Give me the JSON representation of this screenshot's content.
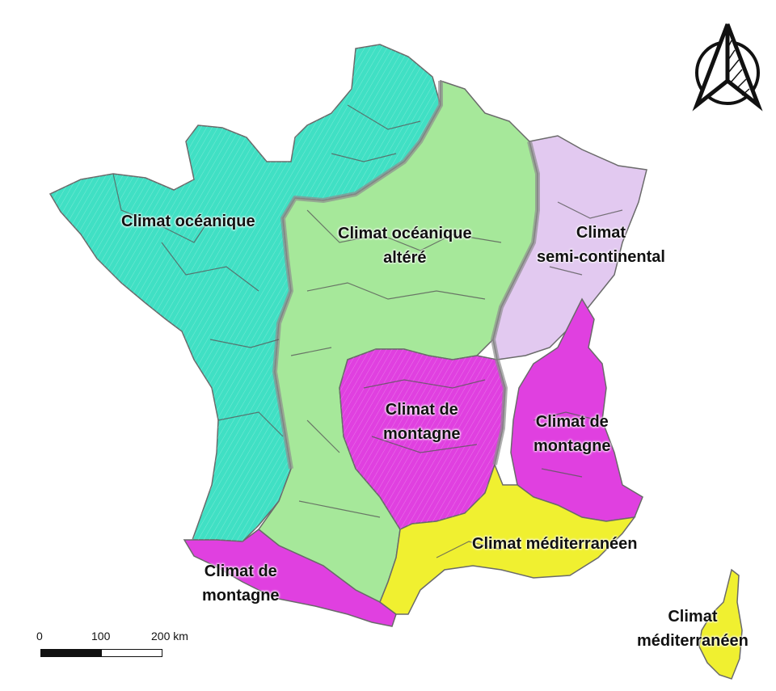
{
  "map": {
    "colors": {
      "oceanique": "#40e0c4",
      "oceanique_altere": "#a6e89a",
      "semi_continental": "#e2c9f0",
      "montagne": "#e040e0",
      "mediterraneen": "#f0f030",
      "border": "#6a6a6a",
      "transition": "#9a9a9a"
    },
    "regions": {
      "oceanique": "Climat océanique",
      "oceanique_altere_1": "Climat océanique",
      "oceanique_altere_2": "altéré",
      "semi_continental_1": "Climat",
      "semi_continental_2": "semi-continental",
      "montagne_central_1": "Climat de",
      "montagne_central_2": "montagne",
      "montagne_alpes_1": "Climat de",
      "montagne_alpes_2": "montagne",
      "montagne_pyrenees_1": "Climat de",
      "montagne_pyrenees_2": "montagne",
      "mediterraneen_south": "Climat méditerranéen",
      "mediterraneen_corse_1": "Climat",
      "mediterraneen_corse_2": "méditerranéen"
    },
    "scale_bar": {
      "t0": "0",
      "t1": "100",
      "t2": "200 km"
    },
    "north_arrow_icon": "north-arrow-icon"
  }
}
